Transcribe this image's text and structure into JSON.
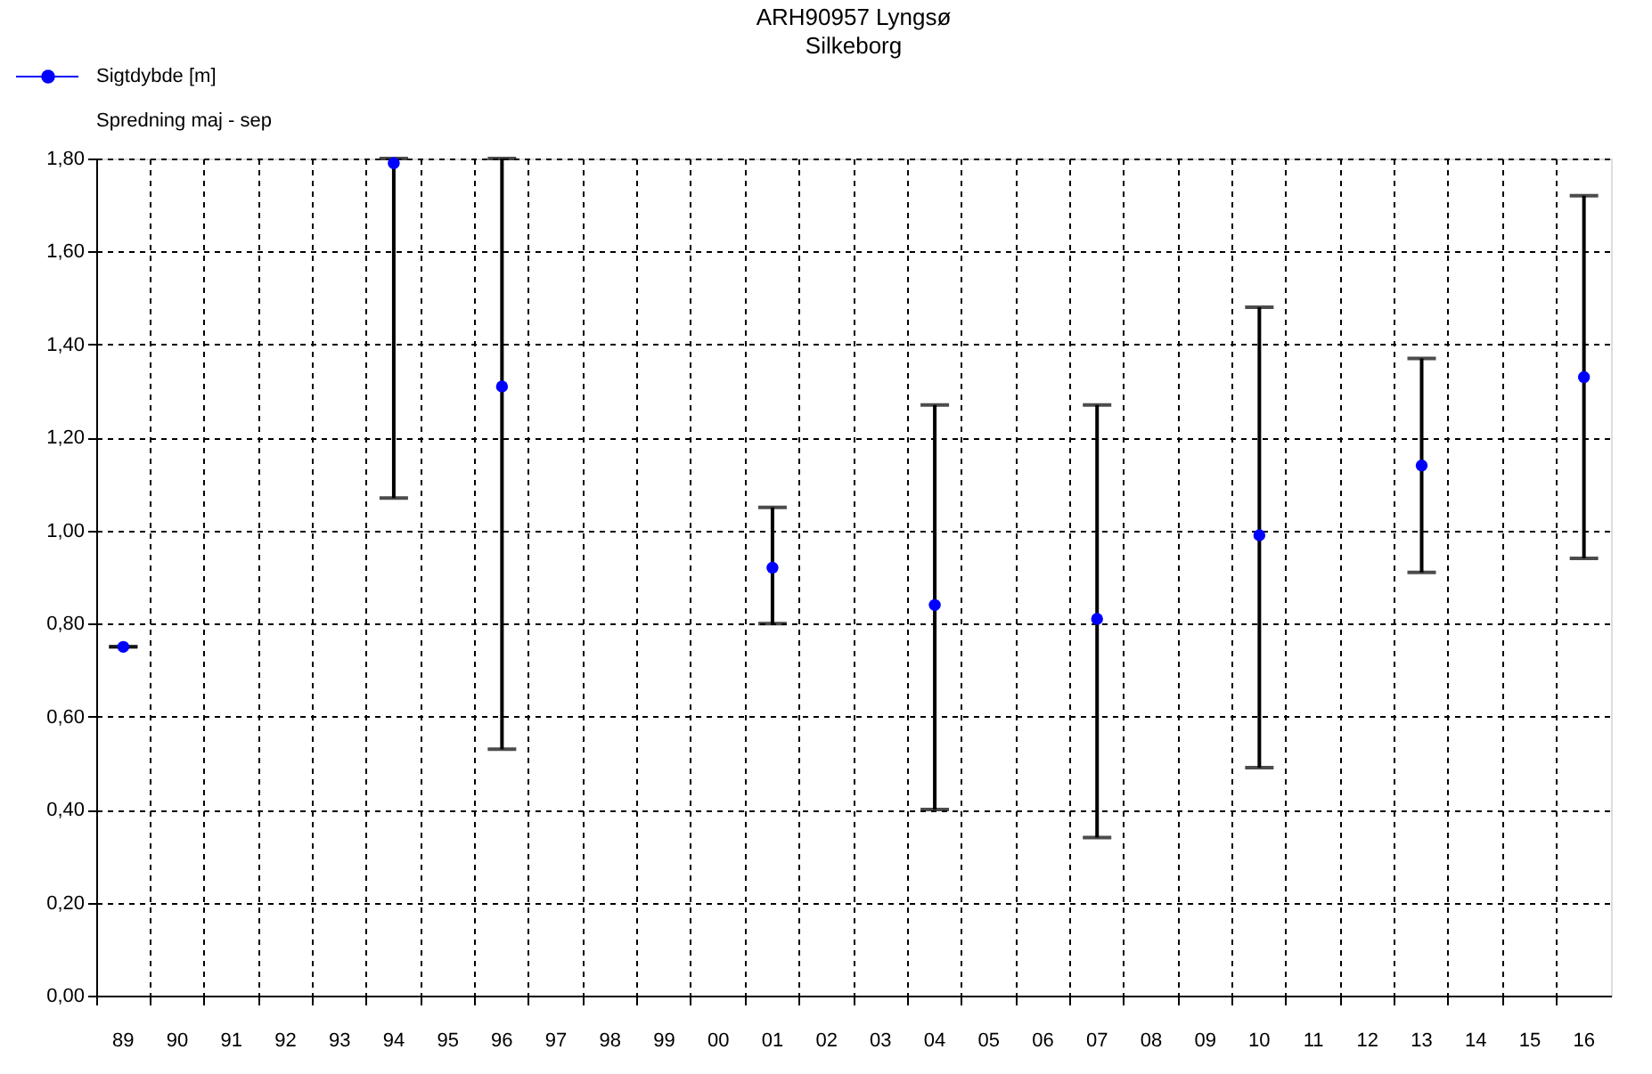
{
  "chart_data": {
    "type": "scatter",
    "title": "ARH90957 Lyngsø",
    "subtitle": "Silkeborg",
    "categories": [
      "89",
      "90",
      "91",
      "92",
      "93",
      "94",
      "95",
      "96",
      "97",
      "98",
      "99",
      "00",
      "01",
      "02",
      "03",
      "04",
      "05",
      "06",
      "07",
      "08",
      "09",
      "10",
      "11",
      "12",
      "13",
      "14",
      "15",
      "16"
    ],
    "series": [
      {
        "name": "Sigtdybde [m]",
        "color": "#0000ff",
        "values": [
          0.75,
          null,
          null,
          null,
          null,
          1.79,
          null,
          1.31,
          null,
          null,
          null,
          null,
          0.92,
          null,
          null,
          0.84,
          null,
          null,
          0.81,
          null,
          null,
          0.99,
          null,
          null,
          1.14,
          null,
          null,
          1.33
        ],
        "errors": [
          [
            0.75,
            0.75
          ],
          null,
          null,
          null,
          null,
          [
            1.07,
            1.8
          ],
          null,
          [
            0.53,
            1.8
          ],
          null,
          null,
          null,
          null,
          [
            0.8,
            1.05
          ],
          null,
          null,
          [
            0.4,
            1.27
          ],
          null,
          null,
          [
            0.34,
            1.27
          ],
          null,
          null,
          [
            0.49,
            1.48
          ],
          null,
          null,
          [
            0.91,
            1.37
          ],
          null,
          null,
          [
            0.94,
            1.72
          ]
        ]
      }
    ],
    "annotations": [
      "Spredning maj - sep"
    ],
    "ylim": [
      0,
      1.8
    ],
    "yticks": [
      {
        "value": 0,
        "label": "0,00"
      },
      {
        "value": 0.2,
        "label": "0,20"
      },
      {
        "value": 0.4,
        "label": "0,40"
      },
      {
        "value": 0.6,
        "label": "0,60"
      },
      {
        "value": 0.8,
        "label": "0,80"
      },
      {
        "value": 1.0,
        "label": "1,00"
      },
      {
        "value": 1.2,
        "label": "1,20"
      },
      {
        "value": 1.4,
        "label": "1,40"
      },
      {
        "value": 1.6,
        "label": "1,60"
      },
      {
        "value": 1.8,
        "label": "1,80"
      }
    ],
    "grid": true,
    "legend": "top left",
    "marker": "circle",
    "line_style": "solid"
  }
}
